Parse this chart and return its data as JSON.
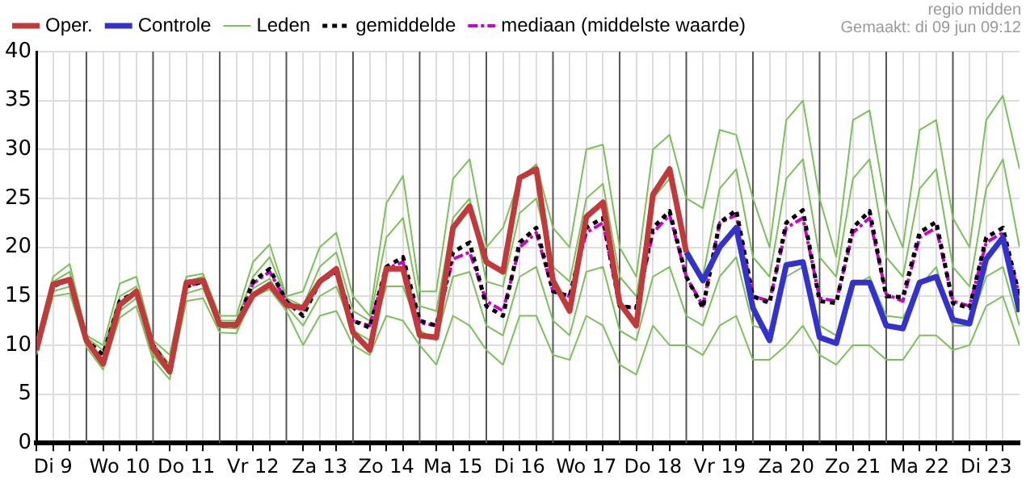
{
  "chart_data": {
    "type": "line",
    "legend": "top",
    "grid": true,
    "marker": "none",
    "annotations": [
      "regio midden",
      "Gemaakt: di 09 jun 09:12"
    ],
    "x": [
      "--06-09T06:00",
      "--06-09T12:00",
      "--06-09T18:00",
      "--06-10T00:00",
      "--06-10T06:00",
      "--06-10T12:00",
      "--06-10T18:00",
      "--06-11T00:00",
      "--06-11T06:00",
      "--06-11T12:00",
      "--06-11T18:00",
      "--06-12T00:00",
      "--06-12T06:00",
      "--06-12T12:00",
      "--06-12T18:00",
      "--06-13T00:00",
      "--06-13T06:00",
      "--06-13T12:00",
      "--06-13T18:00",
      "--06-14T00:00",
      "--06-14T06:00",
      "--06-14T12:00",
      "--06-14T18:00",
      "--06-15T00:00",
      "--06-15T06:00",
      "--06-15T12:00",
      "--06-15T18:00",
      "--06-16T00:00",
      "--06-16T06:00",
      "--06-16T12:00",
      "--06-16T18:00",
      "--06-17T00:00",
      "--06-17T06:00",
      "--06-17T12:00",
      "--06-17T18:00",
      "--06-18T00:00",
      "--06-18T06:00",
      "--06-18T12:00",
      "--06-18T18:00",
      "--06-19T00:00",
      "--06-19T06:00",
      "--06-19T12:00",
      "--06-19T18:00",
      "--06-20T00:00",
      "--06-20T06:00",
      "--06-20T12:00",
      "--06-20T18:00",
      "--06-21T00:00",
      "--06-21T06:00",
      "--06-21T12:00",
      "--06-21T18:00",
      "--06-22T00:00",
      "--06-22T06:00",
      "--06-22T12:00",
      "--06-22T18:00",
      "--06-23T00:00",
      "--06-23T06:00",
      "--06-23T12:00",
      "--06-23T18:00",
      "--06-24T00:00"
    ],
    "xlim": [
      "--06-09T06:00",
      "--06-24T00:00"
    ],
    "ylim": [
      0,
      40
    ],
    "yticks": [
      0,
      5,
      10,
      15,
      20,
      25,
      30,
      35,
      40
    ],
    "xticks": [
      {
        "value": "--06-09T06:00",
        "label": null
      },
      {
        "value": "--06-09T12:00",
        "label": "Di 9"
      },
      {
        "value": "--06-09T18:00",
        "label": null
      },
      {
        "value": "--06-10T06:00",
        "label": null
      },
      {
        "value": "--06-10T12:00",
        "label": "Wo 10"
      },
      {
        "value": "--06-10T18:00",
        "label": null
      },
      {
        "value": "--06-11T06:00",
        "label": null
      },
      {
        "value": "--06-11T12:00",
        "label": "Do 11"
      },
      {
        "value": "--06-11T18:00",
        "label": null
      },
      {
        "value": "--06-12T06:00",
        "label": null
      },
      {
        "value": "--06-12T12:00",
        "label": "Vr 12"
      },
      {
        "value": "--06-12T18:00",
        "label": null
      },
      {
        "value": "--06-13T06:00",
        "label": null
      },
      {
        "value": "--06-13T12:00",
        "label": "Za 13"
      },
      {
        "value": "--06-13T18:00",
        "label": null
      },
      {
        "value": "--06-14T06:00",
        "label": null
      },
      {
        "value": "--06-14T12:00",
        "label": "Zo 14"
      },
      {
        "value": "--06-14T18:00",
        "label": null
      },
      {
        "value": "--06-15T06:00",
        "label": null
      },
      {
        "value": "--06-15T12:00",
        "label": "Ma 15"
      },
      {
        "value": "--06-15T18:00",
        "label": null
      },
      {
        "value": "--06-16T06:00",
        "label": null
      },
      {
        "value": "--06-16T12:00",
        "label": "Di 16"
      },
      {
        "value": "--06-16T18:00",
        "label": null
      },
      {
        "value": "--06-17T06:00",
        "label": null
      },
      {
        "value": "--06-17T12:00",
        "label": "Wo 17"
      },
      {
        "value": "--06-17T18:00",
        "label": null
      },
      {
        "value": "--06-18T06:00",
        "label": null
      },
      {
        "value": "--06-18T12:00",
        "label": "Do 18"
      },
      {
        "value": "--06-18T18:00",
        "label": null
      },
      {
        "value": "--06-19T06:00",
        "label": null
      },
      {
        "value": "--06-19T12:00",
        "label": "Vr 19"
      },
      {
        "value": "--06-19T18:00",
        "label": null
      },
      {
        "value": "--06-20T06:00",
        "label": null
      },
      {
        "value": "--06-20T12:00",
        "label": "Za 20"
      },
      {
        "value": "--06-20T18:00",
        "label": null
      },
      {
        "value": "--06-21T06:00",
        "label": null
      },
      {
        "value": "--06-21T12:00",
        "label": "Zo 21"
      },
      {
        "value": "--06-21T18:00",
        "label": null
      },
      {
        "value": "--06-22T06:00",
        "label": null
      },
      {
        "value": "--06-22T12:00",
        "label": "Ma 22"
      },
      {
        "value": "--06-22T18:00",
        "label": null
      },
      {
        "value": "--06-23T06:00",
        "label": null
      },
      {
        "value": "--06-23T12:00",
        "label": "Di 23"
      },
      {
        "value": "--06-23T18:00",
        "label": null
      }
    ],
    "ref_lines": [
      {
        "axis": "x",
        "value": "--06-10T00:00",
        "color": "#555555"
      },
      {
        "axis": "x",
        "value": "--06-11T00:00",
        "color": "#555555"
      },
      {
        "axis": "x",
        "value": "--06-12T00:00",
        "color": "#555555"
      },
      {
        "axis": "x",
        "value": "--06-13T00:00",
        "color": "#555555"
      },
      {
        "axis": "x",
        "value": "--06-14T00:00",
        "color": "#555555"
      },
      {
        "axis": "x",
        "value": "--06-15T00:00",
        "color": "#555555"
      },
      {
        "axis": "x",
        "value": "--06-16T00:00",
        "color": "#555555"
      },
      {
        "axis": "x",
        "value": "--06-17T00:00",
        "color": "#555555"
      },
      {
        "axis": "x",
        "value": "--06-18T00:00",
        "color": "#555555"
      },
      {
        "axis": "x",
        "value": "--06-19T00:00",
        "color": "#555555"
      },
      {
        "axis": "x",
        "value": "--06-20T00:00",
        "color": "#555555"
      },
      {
        "axis": "x",
        "value": "--06-21T00:00",
        "color": "#555555"
      },
      {
        "axis": "x",
        "value": "--06-22T00:00",
        "color": "#555555"
      },
      {
        "axis": "x",
        "value": "--06-23T00:00",
        "color": "#555555"
      }
    ],
    "series": [
      {
        "name": "Oper.",
        "color": "#c0393b",
        "line_style": "solid",
        "values": [
          9.5,
          16.2,
          16.7,
          10.5,
          8.1,
          14.1,
          15.5,
          9.7,
          7.3,
          16.4,
          16.6,
          12.1,
          12.1,
          15.1,
          16.2,
          14.1,
          13.8,
          16.5,
          17.8,
          11.3,
          9.5,
          17.8,
          17.8,
          11.0,
          10.8,
          22.0,
          24.2,
          18.5,
          17.5,
          27.1,
          28.0,
          16.6,
          13.5,
          23.1,
          24.6,
          14.3,
          12.0,
          25.4,
          28.0,
          19.5,
          null,
          null,
          null,
          null,
          null,
          null,
          null,
          null,
          null,
          null,
          null,
          null,
          null,
          null,
          null,
          null,
          null,
          null,
          null,
          null
        ]
      },
      {
        "name": "Controle",
        "color": "#3333cc",
        "line_style": "solid",
        "values": [
          null,
          null,
          null,
          null,
          null,
          null,
          null,
          null,
          null,
          null,
          null,
          null,
          null,
          null,
          null,
          null,
          null,
          null,
          null,
          null,
          null,
          null,
          null,
          null,
          null,
          null,
          null,
          null,
          null,
          null,
          null,
          null,
          null,
          null,
          null,
          null,
          null,
          null,
          null,
          19.5,
          16.6,
          20.0,
          22.0,
          13.8,
          10.5,
          18.2,
          18.5,
          10.8,
          10.2,
          16.4,
          16.4,
          12.0,
          11.7,
          16.4,
          17.0,
          12.6,
          12.2,
          18.8,
          21.0,
          13.4
        ]
      },
      {
        "name": "Leden",
        "color": "#7cc05a",
        "line_style": "solid",
        "values": [
          10.5,
          17,
          18.3,
          11,
          10,
          16.3,
          17,
          10.5,
          9,
          17,
          17.3,
          13,
          13,
          18.5,
          20.3,
          15,
          15.5,
          20,
          21.5,
          15,
          13,
          24.5,
          27.3,
          15.5,
          15.5,
          27,
          29,
          20,
          22,
          27,
          28.5,
          22,
          20,
          30,
          30.5,
          20,
          17,
          30,
          31.5,
          25,
          24,
          32,
          31.5,
          25,
          20,
          33,
          35,
          25,
          19,
          33,
          34,
          24,
          20,
          32,
          33,
          23,
          20,
          33,
          35.5,
          28
        ]
      },
      {
        "color": "#7cc05a",
        "line_style": "solid",
        "values": [
          9.8,
          16.5,
          17.5,
          10.8,
          9.5,
          15,
          16,
          10.2,
          8,
          16.5,
          17,
          12.5,
          12.5,
          17,
          19,
          14.8,
          14,
          18,
          19.5,
          13.5,
          12.5,
          21,
          23,
          14,
          13.5,
          23,
          25,
          16.5,
          16,
          23.5,
          25,
          18,
          16.5,
          25,
          26.5,
          17,
          15,
          25,
          27,
          20,
          17,
          26,
          28,
          19,
          17,
          27,
          29,
          19,
          17,
          27,
          29,
          19,
          17,
          26,
          28,
          18,
          16,
          26,
          29,
          20
        ]
      },
      {
        "color": "#7cc05a",
        "line_style": "solid",
        "values": [
          9.3,
          15.5,
          16,
          10.2,
          8.6,
          13.5,
          14.8,
          9,
          7,
          15.3,
          15.8,
          11.8,
          11.7,
          15.8,
          16.8,
          14,
          12,
          15,
          16,
          11.5,
          10.5,
          16,
          16,
          11.5,
          10.5,
          17,
          17.5,
          12,
          11,
          17,
          18,
          12.5,
          11,
          17.5,
          18,
          11.5,
          10.5,
          17,
          18,
          13,
          12,
          17,
          19,
          12,
          11.5,
          17,
          18,
          12,
          11,
          16,
          17,
          13,
          12.8,
          16,
          18,
          12,
          12,
          17,
          18,
          12
        ]
      },
      {
        "color": "#7cc05a",
        "line_style": "solid",
        "values": [
          9,
          15,
          15.3,
          9.8,
          7.5,
          12.8,
          14,
          8.5,
          6.5,
          14.5,
          14.8,
          11.3,
          11.2,
          15,
          15.7,
          13.5,
          10,
          13,
          13.5,
          10,
          9,
          13,
          12.5,
          10,
          8,
          13,
          12,
          9.5,
          8,
          13,
          13,
          9,
          8.5,
          13,
          12,
          8,
          7,
          12,
          10,
          10,
          9,
          12,
          13,
          8.5,
          8.5,
          10,
          12,
          9,
          8,
          10,
          10,
          8.5,
          8.5,
          11,
          11,
          9.5,
          10,
          14,
          15,
          10
        ]
      },
      {
        "name": "gemiddelde",
        "color": "#000000",
        "line_style": "dotted",
        "values": [
          9.5,
          16,
          16.8,
          10.5,
          9,
          14.5,
          15.5,
          10,
          7.5,
          16,
          16.5,
          12,
          12,
          16.5,
          17.8,
          14.5,
          13,
          16.5,
          17.5,
          12.5,
          11.8,
          18,
          19,
          12.5,
          12,
          19.5,
          20.5,
          14,
          13,
          20.5,
          22,
          15.5,
          15,
          22,
          23,
          14,
          13.8,
          22,
          23.7,
          17,
          13.8,
          22.5,
          23.8,
          15,
          14.3,
          22.5,
          23.8,
          14.5,
          14.3,
          22,
          23.7,
          15,
          14.9,
          21.5,
          22.6,
          14.3,
          13.8,
          21,
          22,
          15
        ]
      },
      {
        "name": "mediaan (middelste waarde)",
        "color": "#cc00cc",
        "line_style": "dashed",
        "values": [
          null,
          null,
          null,
          null,
          9,
          14.3,
          15.5,
          10,
          7.5,
          16,
          16.5,
          12,
          12,
          16.3,
          17.5,
          14.5,
          13.5,
          16.5,
          17.5,
          12.5,
          12,
          17.8,
          18.5,
          12.3,
          12,
          18.8,
          19.5,
          14.5,
          13.5,
          20,
          21.5,
          15.5,
          15,
          21.5,
          22.5,
          14,
          13.8,
          21.5,
          23.3,
          17,
          14,
          22.5,
          23.3,
          15,
          14.5,
          22,
          23,
          14.8,
          14.5,
          21.5,
          23,
          15.2,
          14.5,
          21,
          22,
          14.5,
          14,
          20.5,
          21.5,
          15
        ]
      }
    ]
  }
}
